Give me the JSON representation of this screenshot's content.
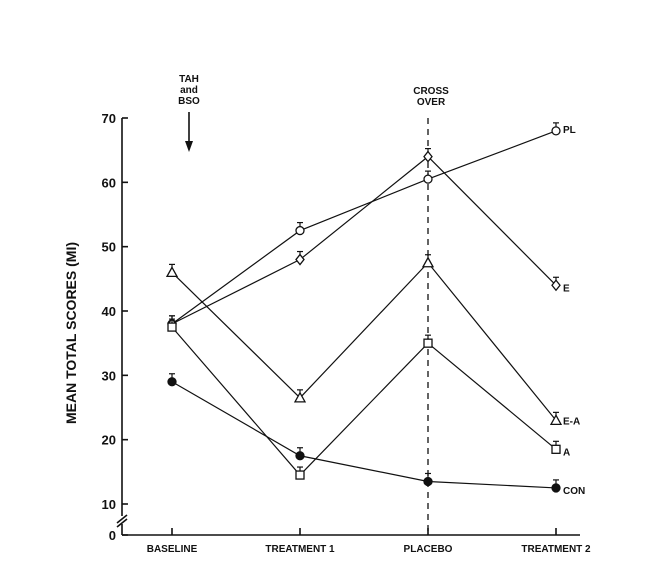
{
  "chart_data": {
    "type": "line",
    "title": "",
    "xlabel": "",
    "ylabel": "MEAN TOTAL SCORES (MI)",
    "categories": [
      "BASELINE",
      "TREATMENT 1",
      "PLACEBO",
      "TREATMENT 2"
    ],
    "ylim": [
      0,
      70
    ],
    "yticks": [
      0,
      10,
      20,
      30,
      40,
      50,
      60,
      70
    ],
    "axis_break": true,
    "grid": false,
    "legend": "series labels at right end of each line",
    "series": [
      {
        "name": "PL",
        "marker": "open-circle",
        "values": [
          38,
          52.5,
          60.5,
          68
        ]
      },
      {
        "name": "E",
        "marker": "open-diamond",
        "values": [
          38,
          48,
          64,
          44
        ]
      },
      {
        "name": "E-A",
        "marker": "open-triangle",
        "values": [
          46,
          26.5,
          47.5,
          23
        ]
      },
      {
        "name": "A",
        "marker": "open-square",
        "values": [
          37.5,
          14.5,
          35,
          18.5
        ]
      },
      {
        "name": "CON",
        "marker": "filled-circle",
        "values": [
          29,
          17.5,
          13.5,
          12.5
        ]
      }
    ],
    "annotations": [
      {
        "text_lines": [
          "TAH",
          "and",
          "BSO"
        ],
        "category": "BASELINE",
        "style": "arrow-down"
      },
      {
        "text_lines": [
          "CROSS",
          "OVER"
        ],
        "category": "PLACEBO",
        "style": "dashed-vertical-line"
      }
    ],
    "colors": {
      "ink": "#111111",
      "background": "#ffffff"
    }
  }
}
